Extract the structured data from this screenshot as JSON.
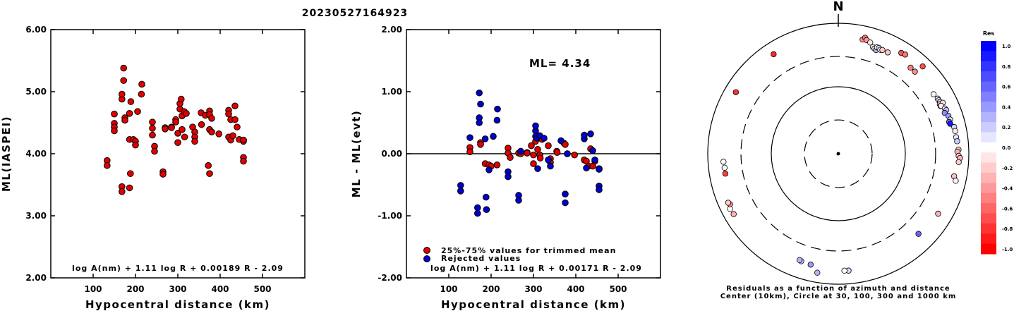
{
  "header": {
    "event_id": "20230527164923"
  },
  "chart_data": [
    {
      "type": "scatter",
      "title": "",
      "ylabel": "ML(IASPEI)",
      "xlabel": "Hypocentral distance (km)",
      "xlim": [
        0,
        600
      ],
      "ylim": [
        2.0,
        6.0
      ],
      "xticks": [
        100,
        200,
        300,
        400,
        500
      ],
      "yticks": [
        "2.00",
        "3.00",
        "4.00",
        "5.00",
        "6.00"
      ],
      "formula": "log A(nm) + 1.11 log R + 0.00189 R - 2.09",
      "series": [
        {
          "color": "#e00000",
          "points": [
            [
              133,
              3.89
            ],
            [
              133,
              3.81
            ],
            [
              150,
              4.64
            ],
            [
              150,
              4.49
            ],
            [
              150,
              4.43
            ],
            [
              150,
              4.37
            ],
            [
              168,
              3.47
            ],
            [
              168,
              3.39
            ],
            [
              168,
              4.88
            ],
            [
              168,
              4.96
            ],
            [
              172,
              5.38
            ],
            [
              172,
              5.18
            ],
            [
              175,
              4.58
            ],
            [
              175,
              4.54
            ],
            [
              186,
              4.65
            ],
            [
              186,
              4.23
            ],
            [
              186,
              3.45
            ],
            [
              188,
              3.68
            ],
            [
              189,
              4.84
            ],
            [
              195,
              4.23
            ],
            [
              200,
              4.2
            ],
            [
              200,
              4.14
            ],
            [
              205,
              4.68
            ],
            [
              214,
              4.96
            ],
            [
              215,
              5.12
            ],
            [
              240,
              4.51
            ],
            [
              240,
              4.41
            ],
            [
              240,
              4.3
            ],
            [
              245,
              4.12
            ],
            [
              245,
              4.04
            ],
            [
              265,
              3.71
            ],
            [
              265,
              3.67
            ],
            [
              270,
              4.42
            ],
            [
              270,
              4.4
            ],
            [
              285,
              4.43
            ],
            [
              285,
              4.42
            ],
            [
              295,
              4.55
            ],
            [
              295,
              4.51
            ],
            [
              300,
              4.33
            ],
            [
              300,
              4.18
            ],
            [
              305,
              4.72
            ],
            [
              305,
              4.81
            ],
            [
              308,
              4.88
            ],
            [
              310,
              4.61
            ],
            [
              310,
              4.39
            ],
            [
              315,
              4.68
            ],
            [
              316,
              4.27
            ],
            [
              320,
              4.65
            ],
            [
              335,
              4.43
            ],
            [
              340,
              4.35
            ],
            [
              340,
              4.27
            ],
            [
              340,
              4.2
            ],
            [
              355,
              4.66
            ],
            [
              356,
              4.47
            ],
            [
              365,
              4.62
            ],
            [
              372,
              3.81
            ],
            [
              375,
              4.69
            ],
            [
              375,
              4.63
            ],
            [
              375,
              4.39
            ],
            [
              375,
              3.68
            ],
            [
              380,
              4.57
            ],
            [
              380,
              4.35
            ],
            [
              397,
              4.32
            ],
            [
              420,
              4.7
            ],
            [
              420,
              4.64
            ],
            [
              420,
              4.27
            ],
            [
              425,
              4.22
            ],
            [
              425,
              4.55
            ],
            [
              430,
              4.29
            ],
            [
              435,
              4.77
            ],
            [
              435,
              4.55
            ],
            [
              440,
              4.43
            ],
            [
              445,
              4.23
            ],
            [
              455,
              4.22
            ],
            [
              455,
              3.94
            ],
            [
              455,
              3.88
            ],
            [
              455,
              4.2
            ],
            [
              455,
              4.22
            ]
          ]
        }
      ]
    },
    {
      "type": "scatter",
      "title": "",
      "ylabel": "ML - ML(evt)",
      "xlabel": "Hypocentral distance (km)",
      "xlim": [
        0,
        600
      ],
      "ylim": [
        -2.0,
        2.0
      ],
      "xticks": [
        100,
        200,
        300,
        400,
        500
      ],
      "yticks": [
        "-2.00",
        "-1.00",
        "0.00",
        "1.00",
        "2.00"
      ],
      "annotation": "ML= 4.34",
      "formula": "log A(nm) + 1.11 log R + 0.00171 R - 2.09",
      "legend": [
        "25%-75% values for trimmed mean",
        "Rejected values"
      ],
      "series": [
        {
          "name": "25%-75% values for trimmed mean",
          "color": "#e00000",
          "points": [
            [
              150,
              0.1
            ],
            [
              150,
              0.03
            ],
            [
              175,
              0.18
            ],
            [
              175,
              0.15
            ],
            [
              186,
              -0.16
            ],
            [
              195,
              -0.18
            ],
            [
              200,
              -0.2
            ],
            [
              214,
              -0.18
            ],
            [
              240,
              0.09
            ],
            [
              240,
              0.01
            ],
            [
              245,
              -0.06
            ],
            [
              265,
              0.01
            ],
            [
              270,
              0.0
            ],
            [
              285,
              0.02
            ],
            [
              285,
              0.01
            ],
            [
              295,
              0.13
            ],
            [
              300,
              -0.02
            ],
            [
              300,
              -0.16
            ],
            [
              305,
              0.2
            ],
            [
              310,
              0.07
            ],
            [
              315,
              -0.02
            ],
            [
              316,
              -0.07
            ],
            [
              320,
              0.23
            ],
            [
              335,
              0.13
            ],
            [
              340,
              -0.08
            ],
            [
              340,
              -0.14
            ],
            [
              355,
              0.04
            ],
            [
              356,
              0.02
            ],
            [
              372,
              0.17
            ],
            [
              375,
              0.15
            ],
            [
              380,
              0.0
            ],
            [
              397,
              -0.02
            ],
            [
              420,
              -0.1
            ],
            [
              425,
              -0.12
            ],
            [
              430,
              -0.2
            ],
            [
              435,
              0.08
            ],
            [
              440,
              -0.2
            ],
            [
              445,
              -0.12
            ],
            [
              455,
              -0.25
            ],
            [
              455,
              -0.24
            ]
          ]
        },
        {
          "name": "Rejected values",
          "color": "#0000cc",
          "points": [
            [
              128,
              -0.51
            ],
            [
              128,
              -0.6
            ],
            [
              150,
              0.26
            ],
            [
              168,
              -0.87
            ],
            [
              168,
              -0.96
            ],
            [
              172,
              0.58
            ],
            [
              172,
              0.5
            ],
            [
              172,
              0.98
            ],
            [
              175,
              0.8
            ],
            [
              186,
              0.24
            ],
            [
              188,
              -0.7
            ],
            [
              189,
              -0.9
            ],
            [
              195,
              -0.26
            ],
            [
              205,
              0.28
            ],
            [
              214,
              0.54
            ],
            [
              215,
              0.72
            ],
            [
              240,
              -0.29
            ],
            [
              240,
              -0.37
            ],
            [
              265,
              -0.67
            ],
            [
              265,
              -0.75
            ],
            [
              270,
              0.04
            ],
            [
              305,
              0.37
            ],
            [
              305,
              0.45
            ],
            [
              305,
              0.28
            ],
            [
              308,
              0.25
            ],
            [
              310,
              -0.24
            ],
            [
              315,
              0.29
            ],
            [
              325,
              0.25
            ],
            [
              335,
              -0.1
            ],
            [
              340,
              -0.2
            ],
            [
              365,
              0.21
            ],
            [
              375,
              -0.65
            ],
            [
              375,
              -0.79
            ],
            [
              380,
              0.0
            ],
            [
              420,
              0.24
            ],
            [
              420,
              0.3
            ],
            [
              425,
              -0.23
            ],
            [
              435,
              0.32
            ],
            [
              440,
              0.05
            ],
            [
              445,
              -0.1
            ],
            [
              455,
              -0.25
            ],
            [
              455,
              -0.52
            ],
            [
              455,
              -0.58
            ]
          ]
        }
      ]
    },
    {
      "type": "scatter",
      "title": "",
      "north_label": "N",
      "colorbar_title": "Res",
      "colorbar_ticks": [
        "1.0",
        "0.8",
        "0.6",
        "0.4",
        "0.2",
        "0.0",
        "-0.2",
        "-0.4",
        "-0.6",
        "-0.8",
        "-1.0"
      ],
      "caption_line1": "Residuals as a function of azimuth and distance",
      "caption_line2": "Center (10km), Circle at 30, 100, 300 and 1000 km",
      "circles_km": [
        30,
        100,
        300,
        1000
      ],
      "points": [
        {
          "az": 12,
          "dist": 608,
          "res": -0.45
        },
        {
          "az": 13,
          "dist": 660,
          "res": -0.55
        },
        {
          "az": 14,
          "dist": 616,
          "res": -0.4
        },
        {
          "az": 16,
          "dist": 585,
          "res": -0.1
        },
        {
          "az": 18,
          "dist": 514,
          "res": 0.05
        },
        {
          "az": 19,
          "dist": 499,
          "res": -0.15
        },
        {
          "az": 20,
          "dist": 483,
          "res": 0.3
        },
        {
          "az": 20,
          "dist": 535,
          "res": -0.05
        },
        {
          "az": 21,
          "dist": 536,
          "res": 0.2
        },
        {
          "az": 22,
          "dist": 513,
          "res": -0.08
        },
        {
          "az": 23,
          "dist": 525,
          "res": -0.2
        },
        {
          "az": 26,
          "dist": 525,
          "res": -0.22
        },
        {
          "az": 32,
          "dist": 655,
          "res": -0.65
        },
        {
          "az": 34,
          "dist": 675,
          "res": -0.55
        },
        {
          "az": 40,
          "dist": 519,
          "res": -0.5
        },
        {
          "az": 43,
          "dist": 516,
          "res": -0.45
        },
        {
          "az": 44,
          "dist": 720,
          "res": -0.7
        },
        {
          "az": 58,
          "dist": 517,
          "res": -0.05
        },
        {
          "az": 61,
          "dist": 543,
          "res": -0.1
        },
        {
          "az": 62,
          "dist": 544,
          "res": 0.15
        },
        {
          "az": 63,
          "dist": 551,
          "res": 0.2
        },
        {
          "az": 64,
          "dist": 529,
          "res": -0.3
        },
        {
          "az": 64,
          "dist": 596,
          "res": -0.15
        },
        {
          "az": 65,
          "dist": 528,
          "res": 0.3
        },
        {
          "az": 65,
          "dist": 538,
          "res": -0.05
        },
        {
          "az": 67,
          "dist": 586,
          "res": 0.05
        },
        {
          "az": 68,
          "dist": 600,
          "res": 0.25
        },
        {
          "az": 69,
          "dist": 549,
          "res": 0.45
        },
        {
          "az": 71,
          "dist": 600,
          "res": 0.4
        },
        {
          "az": 73,
          "dist": 612,
          "res": 0.15
        },
        {
          "az": 74,
          "dist": 575,
          "res": 0.55
        },
        {
          "az": 75,
          "dist": 586,
          "res": 0.9
        },
        {
          "az": 77,
          "dist": 655,
          "res": 0.15
        },
        {
          "az": 79,
          "dist": 660,
          "res": -0.1
        },
        {
          "az": 82,
          "dist": 658,
          "res": 0.1
        },
        {
          "az": 84,
          "dist": 670,
          "res": 0.2
        },
        {
          "az": 88,
          "dist": 690,
          "res": -0.25
        },
        {
          "az": 89,
          "dist": 661,
          "res": -0.3
        },
        {
          "az": 91,
          "dist": 692,
          "res": -0.2
        },
        {
          "az": 92,
          "dist": 729,
          "res": -0.3
        },
        {
          "az": 94,
          "dist": 700,
          "res": -0.2
        },
        {
          "az": 101,
          "dist": 634,
          "res": -0.25
        },
        {
          "az": 103,
          "dist": 695,
          "res": -0.05
        },
        {
          "az": 121,
          "dist": 600,
          "res": -0.3
        },
        {
          "az": 135,
          "dist": 537,
          "res": 0.6
        },
        {
          "az": 175,
          "dist": 621,
          "res": 0.15
        },
        {
          "az": 177,
          "dist": 616,
          "res": 0.0
        },
        {
          "az": 190,
          "dist": 704,
          "res": 0.3
        },
        {
          "az": 194,
          "dist": 556,
          "res": 0.4
        },
        {
          "az": 199,
          "dist": 544,
          "res": 0.25
        },
        {
          "az": 200,
          "dist": 534,
          "res": 0.3
        },
        {
          "az": 240,
          "dist": 703,
          "res": -0.3
        },
        {
          "az": 243,
          "dist": 720,
          "res": 0.0
        },
        {
          "az": 245,
          "dist": 670,
          "res": -0.5
        },
        {
          "az": 246,
          "dist": 696,
          "res": -0.2
        },
        {
          "az": 260,
          "dist": 563,
          "res": -0.75
        },
        {
          "az": 263,
          "dist": 560,
          "res": 0.0
        },
        {
          "az": 266,
          "dist": 571,
          "res": 0.0
        },
        {
          "az": 301,
          "dist": 670,
          "res": -0.8
        },
        {
          "az": 327,
          "dist": 652,
          "res": -0.85
        }
      ]
    }
  ]
}
